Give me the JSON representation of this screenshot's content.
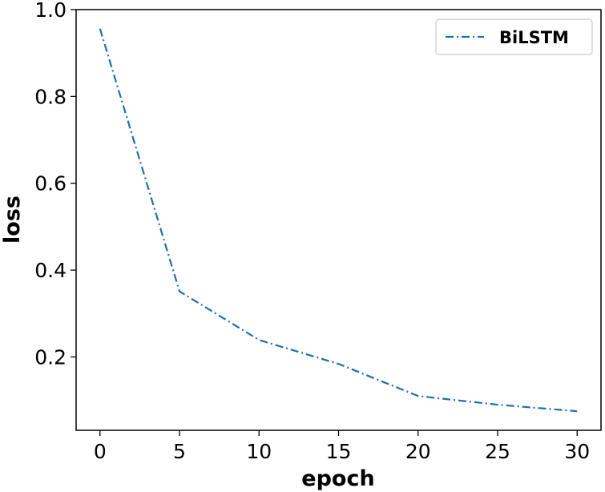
{
  "chart_data": {
    "type": "line",
    "title": "",
    "xlabel": "epoch",
    "ylabel": "loss",
    "xlim": [
      -1.5,
      31.5
    ],
    "ylim": [
      0.031,
      1.0
    ],
    "xticks": [
      0,
      5,
      10,
      15,
      20,
      25,
      30
    ],
    "yticks": [
      0.2,
      0.4,
      0.6,
      0.8,
      1.0
    ],
    "xtick_labels": [
      "0",
      "5",
      "10",
      "15",
      "20",
      "25",
      "30"
    ],
    "ytick_labels": [
      "0.2",
      "0.4",
      "0.6",
      "0.8",
      "1.0"
    ],
    "grid": false,
    "legend_position": "top-right",
    "series": [
      {
        "name": "BiLSTM",
        "color": "#1f6fb4",
        "linestyle": "dash-dot",
        "x": [
          0,
          5,
          10,
          15,
          20,
          25,
          30
        ],
        "y": [
          0.956,
          0.351,
          0.239,
          0.184,
          0.11,
          0.09,
          0.075
        ]
      }
    ]
  }
}
